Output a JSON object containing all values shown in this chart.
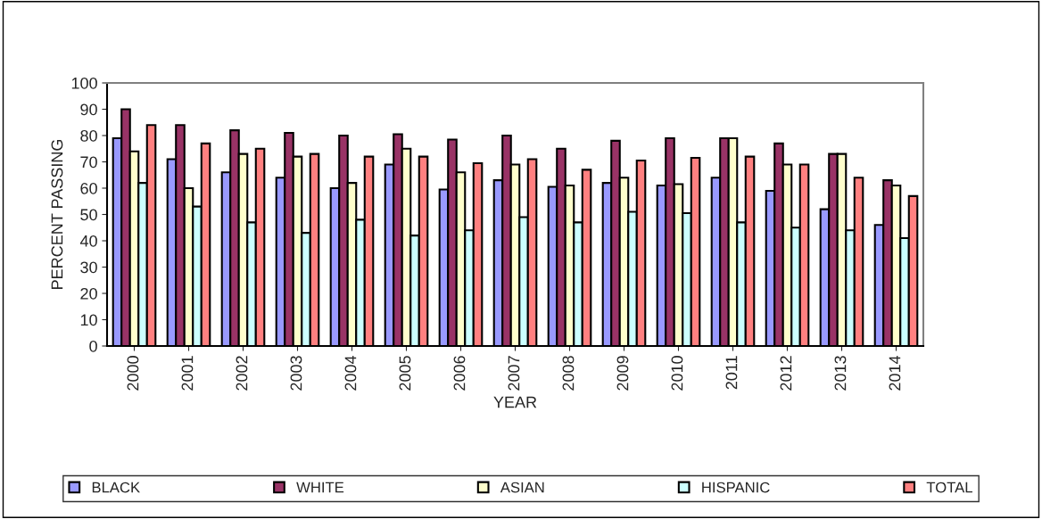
{
  "chart_data": {
    "type": "bar",
    "xlabel": "YEAR",
    "ylabel": "PERCENT PASSING",
    "categories": [
      "2000",
      "2001",
      "2002",
      "2003",
      "2004",
      "2005",
      "2006",
      "2007",
      "2008",
      "2009",
      "2010",
      "2011",
      "2012",
      "2013",
      "2014"
    ],
    "series": [
      {
        "name": "BLACK",
        "color": "#9999ff",
        "values": [
          79,
          71,
          66,
          64,
          60,
          69,
          59.5,
          63,
          60.5,
          62,
          61,
          64,
          59,
          52,
          46
        ]
      },
      {
        "name": "WHITE",
        "color": "#993366",
        "values": [
          90,
          84,
          82,
          81,
          80,
          80.5,
          78.5,
          80,
          75,
          78,
          79,
          79,
          77,
          73,
          63
        ]
      },
      {
        "name": "ASIAN",
        "color": "#ffffcc",
        "values": [
          74,
          60,
          73,
          72,
          62,
          75,
          66,
          69,
          61,
          64,
          61.5,
          79,
          69,
          73,
          61
        ]
      },
      {
        "name": "HISPANIC",
        "color": "#ccffff",
        "values": [
          62,
          53,
          47,
          43,
          48,
          42,
          44,
          49,
          47,
          51,
          50.5,
          47,
          45,
          44,
          41
        ]
      },
      {
        "name": "TOTAL",
        "color": "#ff8080",
        "values": [
          84,
          77,
          75,
          73,
          72,
          72,
          69.5,
          71,
          67,
          70.5,
          71.5,
          72,
          69,
          64,
          57
        ]
      }
    ],
    "ylim": [
      0,
      100
    ],
    "yticks": [
      0,
      10,
      20,
      30,
      40,
      50,
      60,
      70,
      80,
      90,
      100
    ],
    "grid": false,
    "legend": "bottom"
  }
}
